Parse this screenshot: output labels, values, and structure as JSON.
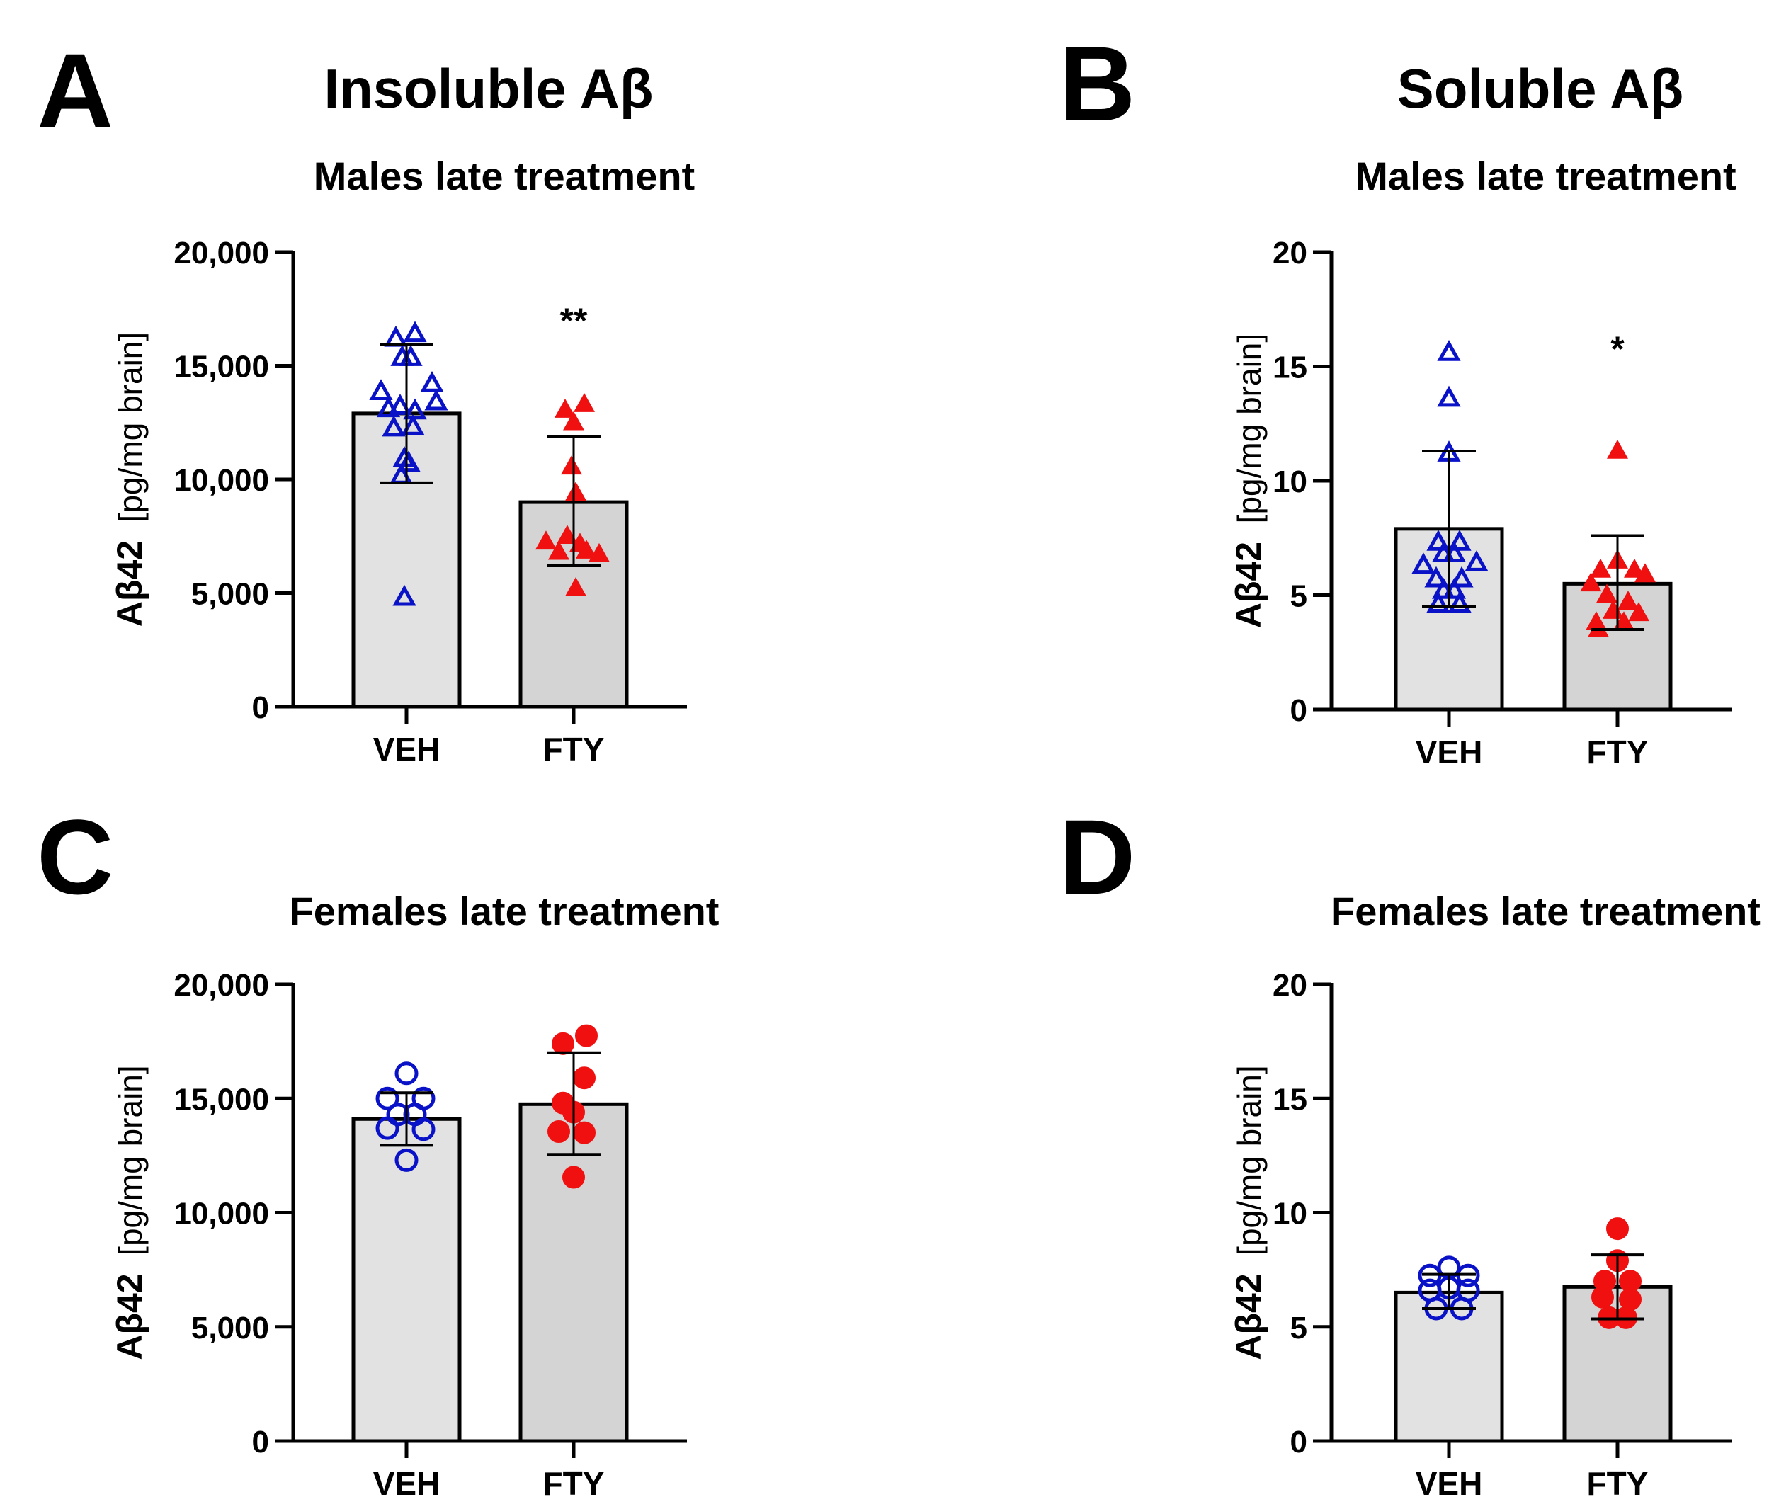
{
  "headings": {
    "insoluble": "Insoluble Aβ",
    "soluble": "Soluble Aβ"
  },
  "colors": {
    "veh_point": "#0A12C8",
    "fty_point": "#F01010",
    "veh_bar": "#E2E2E2",
    "fty_bar": "#D4D4D4",
    "axis": "#000000"
  },
  "chart_data": [
    {
      "id": "A",
      "panel_letter": "A",
      "type": "bar",
      "title": "Males late treatment",
      "ylabel_main": "Aβ42",
      "ylabel_unit": "[pg/mg brain]",
      "categories": [
        "VEH",
        "FTY"
      ],
      "ylim": [
        0,
        20000
      ],
      "yticks": [
        0,
        5000,
        10000,
        15000,
        20000
      ],
      "ytick_labels": [
        "0",
        "5,000",
        "10,000",
        "15,000",
        "20,000"
      ],
      "significance": [
        "",
        "**"
      ],
      "marker": "triangle",
      "series": [
        {
          "name": "VEH",
          "mean": 12900,
          "sd_low": 9850,
          "sd_high": 15950,
          "filled": false,
          "points": [
            [
              -0.24,
              13850
            ],
            [
              -0.1,
              16200
            ],
            [
              0.08,
              16400
            ],
            [
              -0.04,
              15350
            ],
            [
              0.04,
              15350
            ],
            [
              0.24,
              14200
            ],
            [
              -0.17,
              13100
            ],
            [
              -0.06,
              13200
            ],
            [
              0.08,
              13000
            ],
            [
              0.28,
              13400
            ],
            [
              -0.12,
              12250
            ],
            [
              0.06,
              12300
            ],
            [
              -0.02,
              10900
            ],
            [
              0.02,
              10700
            ],
            [
              -0.05,
              10150
            ],
            [
              -0.02,
              4800
            ]
          ]
        },
        {
          "name": "FTY",
          "mean": 9000,
          "sd_low": 6200,
          "sd_high": 11900,
          "filled": true,
          "points": [
            [
              -0.08,
              13050
            ],
            [
              0.1,
              13300
            ],
            [
              0.0,
              12500
            ],
            [
              -0.02,
              10550
            ],
            [
              0.02,
              9400
            ],
            [
              -0.26,
              7250
            ],
            [
              0.06,
              7150
            ],
            [
              -0.14,
              6800
            ],
            [
              0.12,
              6850
            ],
            [
              0.24,
              6700
            ],
            [
              -0.06,
              7500
            ],
            [
              0.02,
              5200
            ]
          ]
        }
      ]
    },
    {
      "id": "B",
      "panel_letter": "B",
      "type": "bar",
      "title": "Males late treatment",
      "ylabel_main": "Aβ42",
      "ylabel_unit": "[pg/mg brain]",
      "categories": [
        "VEH",
        "FTY"
      ],
      "ylim": [
        0,
        20
      ],
      "yticks": [
        0,
        5,
        10,
        15,
        20
      ],
      "ytick_labels": [
        "0",
        "5",
        "10",
        "15",
        "20"
      ],
      "significance": [
        "",
        "*"
      ],
      "marker": "triangle",
      "series": [
        {
          "name": "VEH",
          "mean": 7.9,
          "sd_low": 4.5,
          "sd_high": 11.3,
          "filled": false,
          "points": [
            [
              0.0,
              15.6
            ],
            [
              0.0,
              13.6
            ],
            [
              0.0,
              11.2
            ],
            [
              -0.1,
              7.3
            ],
            [
              0.1,
              7.3
            ],
            [
              -0.05,
              6.8
            ],
            [
              0.05,
              6.8
            ],
            [
              -0.24,
              6.3
            ],
            [
              0.26,
              6.4
            ],
            [
              -0.12,
              5.7
            ],
            [
              0.12,
              5.7
            ],
            [
              -0.05,
              5.2
            ],
            [
              0.05,
              5.2
            ],
            [
              -0.1,
              4.6
            ],
            [
              0.1,
              4.6
            ]
          ]
        },
        {
          "name": "FTY",
          "mean": 5.5,
          "sd_low": 3.5,
          "sd_high": 7.6,
          "filled": true,
          "points": [
            [
              0.0,
              11.3
            ],
            [
              -0.16,
              6.1
            ],
            [
              0.0,
              6.5
            ],
            [
              0.16,
              6.1
            ],
            [
              0.26,
              5.9
            ],
            [
              -0.25,
              5.5
            ],
            [
              -0.1,
              5.0
            ],
            [
              0.1,
              4.7
            ],
            [
              -0.04,
              4.3
            ],
            [
              0.2,
              4.2
            ],
            [
              -0.2,
              3.8
            ],
            [
              0.06,
              3.8
            ],
            [
              -0.18,
              3.5
            ]
          ]
        }
      ]
    },
    {
      "id": "C",
      "panel_letter": "C",
      "type": "bar",
      "title": "Females late treatment",
      "ylabel_main": "Aβ42",
      "ylabel_unit": "[pg/mg brain]",
      "categories": [
        "VEH",
        "FTY"
      ],
      "ylim": [
        0,
        20000
      ],
      "yticks": [
        0,
        5000,
        10000,
        15000,
        20000
      ],
      "ytick_labels": [
        "0",
        "5,000",
        "10,000",
        "15,000",
        "20,000"
      ],
      "significance": [
        "",
        ""
      ],
      "marker": "circle",
      "series": [
        {
          "name": "VEH",
          "mean": 14100,
          "sd_low": 12950,
          "sd_high": 15250,
          "filled": false,
          "points": [
            [
              0.0,
              16100
            ],
            [
              -0.18,
              15000
            ],
            [
              0.16,
              15000
            ],
            [
              -0.08,
              14300
            ],
            [
              0.08,
              14300
            ],
            [
              -0.18,
              13700
            ],
            [
              0.16,
              13650
            ],
            [
              0.0,
              12300
            ]
          ]
        },
        {
          "name": "FTY",
          "mean": 14750,
          "sd_low": 12550,
          "sd_high": 17000,
          "filled": true,
          "points": [
            [
              0.12,
              17750
            ],
            [
              -0.1,
              17400
            ],
            [
              0.1,
              15900
            ],
            [
              -0.1,
              14800
            ],
            [
              0.0,
              14400
            ],
            [
              -0.14,
              13550
            ],
            [
              0.1,
              13500
            ],
            [
              0.0,
              11550
            ]
          ]
        }
      ]
    },
    {
      "id": "D",
      "panel_letter": "D",
      "type": "bar",
      "title": "Females late treatment",
      "ylabel_main": "Aβ42",
      "ylabel_unit": "[pg/mg brain]",
      "categories": [
        "VEH",
        "FTY"
      ],
      "ylim": [
        0,
        20
      ],
      "yticks": [
        0,
        5,
        10,
        15,
        20
      ],
      "ytick_labels": [
        "0",
        "5",
        "10",
        "15",
        "20"
      ],
      "significance": [
        "",
        ""
      ],
      "marker": "circle",
      "series": [
        {
          "name": "VEH",
          "mean": 6.5,
          "sd_low": 5.8,
          "sd_high": 7.3,
          "filled": false,
          "points": [
            [
              0.0,
              7.6
            ],
            [
              -0.18,
              7.25
            ],
            [
              0.18,
              7.25
            ],
            [
              -0.18,
              6.6
            ],
            [
              0.0,
              6.7
            ],
            [
              0.18,
              6.6
            ],
            [
              -0.12,
              5.8
            ],
            [
              0.12,
              5.8
            ]
          ]
        },
        {
          "name": "FTY",
          "mean": 6.75,
          "sd_low": 5.35,
          "sd_high": 8.15,
          "filled": true,
          "points": [
            [
              0.0,
              9.3
            ],
            [
              0.0,
              7.9
            ],
            [
              -0.12,
              7.0
            ],
            [
              0.12,
              7.0
            ],
            [
              -0.14,
              6.3
            ],
            [
              0.12,
              6.2
            ],
            [
              -0.08,
              5.4
            ],
            [
              0.08,
              5.4
            ]
          ]
        }
      ]
    }
  ]
}
